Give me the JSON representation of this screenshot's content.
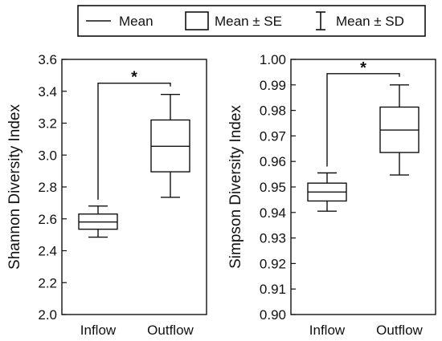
{
  "legend": {
    "items": [
      {
        "symbol": "line",
        "label": "Mean"
      },
      {
        "symbol": "box",
        "label": "Mean ± SE"
      },
      {
        "symbol": "errorbar",
        "label": "Mean ± SD"
      }
    ]
  },
  "chart_data": [
    {
      "type": "box",
      "title": "",
      "xlabel": "",
      "ylabel": "Shannon Diversity Index",
      "ylim": [
        2.0,
        3.6
      ],
      "yticks": [
        "2.0",
        "2.2",
        "2.4",
        "2.6",
        "2.8",
        "3.0",
        "3.2",
        "3.4",
        "3.6"
      ],
      "grid": false,
      "categories": [
        "Inflow",
        "Outflow"
      ],
      "series": [
        {
          "category": "Inflow",
          "mean": 2.58,
          "se_low": 2.535,
          "se_high": 2.63,
          "sd_low": 2.485,
          "sd_high": 2.68
        },
        {
          "category": "Outflow",
          "mean": 3.055,
          "se_low": 2.895,
          "se_high": 3.22,
          "sd_low": 2.735,
          "sd_high": 3.38
        }
      ],
      "annotations": [
        {
          "text": "*",
          "between": [
            "Inflow",
            "Outflow"
          ]
        }
      ]
    },
    {
      "type": "box",
      "title": "",
      "xlabel": "",
      "ylabel": "Simpson Diversity Index",
      "ylim": [
        0.9,
        1.0
      ],
      "yticks": [
        "0.90",
        "0.91",
        "0.92",
        "0.93",
        "0.94",
        "0.95",
        "0.96",
        "0.97",
        "0.98",
        "0.99",
        "1.00"
      ],
      "grid": false,
      "categories": [
        "Inflow",
        "Outflow"
      ],
      "series": [
        {
          "category": "Inflow",
          "mean": 0.948,
          "se_low": 0.9445,
          "se_high": 0.9515,
          "sd_low": 0.9405,
          "sd_high": 0.9555
        },
        {
          "category": "Outflow",
          "mean": 0.9723,
          "se_low": 0.9635,
          "se_high": 0.9813,
          "sd_low": 0.9547,
          "sd_high": 0.99
        }
      ],
      "annotations": [
        {
          "text": "*",
          "between": [
            "Inflow",
            "Outflow"
          ]
        }
      ]
    }
  ]
}
